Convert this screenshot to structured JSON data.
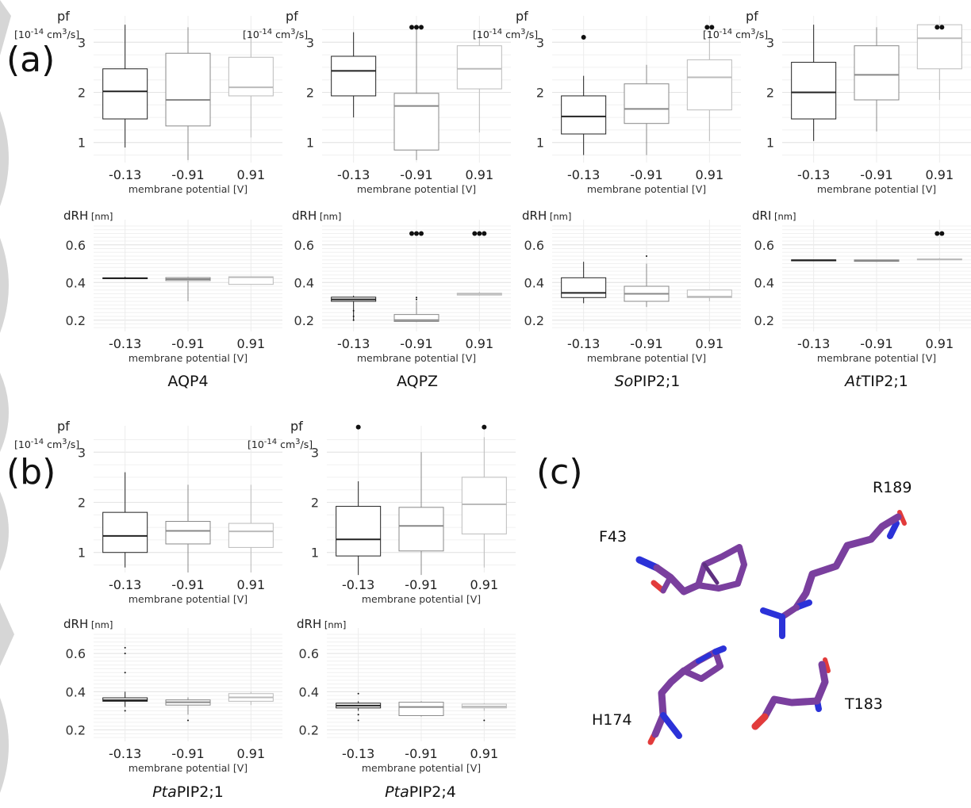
{
  "panel_labels": {
    "a": "(a)",
    "b": "(b)",
    "c": "(c)"
  },
  "proteins": [
    {
      "prefix": "",
      "name": "AQP4"
    },
    {
      "prefix": "",
      "name": "AQPZ"
    },
    {
      "prefix": "So",
      "name": "PIP2;1"
    },
    {
      "prefix": "At",
      "name": "TIP2;1"
    },
    {
      "prefix": "Pta",
      "name": "PIP2;1"
    },
    {
      "prefix": "Pta",
      "name": "PIP2;4"
    }
  ],
  "structure": {
    "residues": [
      "F43",
      "R189",
      "H174",
      "T183"
    ],
    "colors": {
      "carbon": "#7a3f9e",
      "nitrogen": "#2b32d8",
      "oxygen": "#e23b3b"
    }
  },
  "chart_data": [
    {
      "type": "box",
      "protein_index": 0,
      "ylabel": "pf",
      "yunit": "[10-14 cm3/s]",
      "ylabel_kind": "pf",
      "xlabel": "membrane potential [V]",
      "categories": [
        "-0.13",
        "-0.91",
        "0.91"
      ],
      "ylim": [
        0.6,
        3.4
      ],
      "yticks": [
        1,
        2,
        3
      ],
      "boxes": [
        {
          "whislo": 0.9,
          "q1": 1.47,
          "med": 2.02,
          "q3": 2.47,
          "whishi": 3.35,
          "outliers": []
        },
        {
          "whislo": 0.65,
          "q1": 1.33,
          "med": 1.85,
          "q3": 2.78,
          "whishi": 3.3,
          "outliers": []
        },
        {
          "whislo": 1.1,
          "q1": 1.93,
          "med": 2.1,
          "q3": 2.7,
          "whishi": 3.2,
          "outliers": []
        }
      ]
    },
    {
      "type": "box",
      "protein_index": 1,
      "ylabel": "pf",
      "yunit": "[10-14 cm3/s]",
      "ylabel_kind": "pf",
      "xlabel": "membrane potential [V]",
      "categories": [
        "-0.13",
        "-0.91",
        "0.91"
      ],
      "ylim": [
        0.6,
        3.4
      ],
      "yticks": [
        1,
        2,
        3
      ],
      "boxes": [
        {
          "whislo": 1.5,
          "q1": 1.93,
          "med": 2.43,
          "q3": 2.72,
          "whishi": 3.2,
          "outliers": []
        },
        {
          "whislo": 0.65,
          "q1": 0.85,
          "med": 1.73,
          "q3": 1.98,
          "whishi": 3.3,
          "outliers": [
            3.3,
            3.3,
            3.3
          ]
        },
        {
          "whislo": 1.2,
          "q1": 2.07,
          "med": 2.47,
          "q3": 2.93,
          "whishi": 3.2,
          "outliers": []
        }
      ]
    },
    {
      "type": "box",
      "protein_index": 2,
      "ylabel": "pf",
      "yunit": "[10-14 cm3/s]",
      "ylabel_kind": "pf",
      "xlabel": "membrane potential [V]",
      "categories": [
        "-0.13",
        "-0.91",
        "0.91"
      ],
      "ylim": [
        0.6,
        3.4
      ],
      "yticks": [
        1,
        2,
        3
      ],
      "boxes": [
        {
          "whislo": 0.75,
          "q1": 1.17,
          "med": 1.52,
          "q3": 1.93,
          "whishi": 2.33,
          "outliers": [
            3.1
          ]
        },
        {
          "whislo": 0.75,
          "q1": 1.38,
          "med": 1.67,
          "q3": 2.17,
          "whishi": 2.55,
          "outliers": []
        },
        {
          "whislo": 1.03,
          "q1": 1.65,
          "med": 2.3,
          "q3": 2.65,
          "whishi": 3.2,
          "outliers": [
            3.3,
            3.3
          ]
        }
      ]
    },
    {
      "type": "box",
      "protein_index": 3,
      "ylabel": "pf",
      "yunit": "[10-14 cm3/s]",
      "ylabel_kind": "pf",
      "xlabel": "membrane potential [V]",
      "categories": [
        "-0.13",
        "-0.91",
        "0.91"
      ],
      "ylim": [
        0.6,
        3.4
      ],
      "yticks": [
        1,
        2,
        3
      ],
      "boxes": [
        {
          "whislo": 1.03,
          "q1": 1.47,
          "med": 2.0,
          "q3": 2.6,
          "whishi": 3.35,
          "outliers": []
        },
        {
          "whislo": 1.22,
          "q1": 1.85,
          "med": 2.35,
          "q3": 2.93,
          "whishi": 3.3,
          "outliers": []
        },
        {
          "whislo": 1.85,
          "q1": 2.47,
          "med": 3.08,
          "q3": 3.35,
          "whishi": 3.35,
          "outliers": [
            3.3,
            3.3
          ]
        }
      ]
    },
    {
      "type": "box",
      "protein_index": 0,
      "ylabel": "dRH",
      "yunit": "[nm]",
      "ylabel_kind": "d",
      "xlabel": "membrane potential [V]",
      "categories": [
        "-0.13",
        "-0.91",
        "0.91"
      ],
      "ylim": [
        0.14,
        0.7
      ],
      "yticks": [
        0.2,
        0.4,
        0.6
      ],
      "boxes": [
        {
          "whislo": 0.42,
          "q1": 0.42,
          "med": 0.422,
          "q3": 0.425,
          "whishi": 0.43,
          "outliers": []
        },
        {
          "whislo": 0.3,
          "q1": 0.41,
          "med": 0.418,
          "q3": 0.426,
          "whishi": 0.43,
          "outliers": []
        },
        {
          "whislo": 0.39,
          "q1": 0.39,
          "med": 0.428,
          "q3": 0.43,
          "whishi": 0.43,
          "outliers": []
        }
      ]
    },
    {
      "type": "box",
      "protein_index": 1,
      "ylabel": "dRH",
      "yunit": "[nm]",
      "ylabel_kind": "d",
      "xlabel": "membrane potential [V]",
      "categories": [
        "-0.13",
        "-0.91",
        "0.91"
      ],
      "ylim": [
        0.14,
        0.7
      ],
      "yticks": [
        0.2,
        0.4,
        0.6
      ],
      "boxes": [
        {
          "whislo": 0.2,
          "q1": 0.3,
          "med": 0.31,
          "q3": 0.322,
          "whishi": 0.33,
          "outliers": [
            0.2,
            0.22,
            0.25
          ]
        },
        {
          "whislo": 0.19,
          "q1": 0.193,
          "med": 0.2,
          "q3": 0.23,
          "whishi": 0.3,
          "outliers": [
            0.31,
            0.32,
            0.66,
            0.66,
            0.66
          ]
        },
        {
          "whislo": 0.33,
          "q1": 0.333,
          "med": 0.34,
          "q3": 0.343,
          "whishi": 0.35,
          "outliers": [
            0.66,
            0.66,
            0.66
          ]
        }
      ]
    },
    {
      "type": "box",
      "protein_index": 2,
      "ylabel": "dRH",
      "yunit": "[nm]",
      "ylabel_kind": "d",
      "xlabel": "membrane potential [V]",
      "categories": [
        "-0.13",
        "-0.91",
        "0.91"
      ],
      "ylim": [
        0.14,
        0.7
      ],
      "yticks": [
        0.2,
        0.4,
        0.6
      ],
      "boxes": [
        {
          "whislo": 0.29,
          "q1": 0.32,
          "med": 0.345,
          "q3": 0.425,
          "whishi": 0.51,
          "outliers": []
        },
        {
          "whislo": 0.27,
          "q1": 0.3,
          "med": 0.34,
          "q3": 0.38,
          "whishi": 0.5,
          "outliers": [
            0.54
          ]
        },
        {
          "whislo": 0.3,
          "q1": 0.32,
          "med": 0.325,
          "q3": 0.36,
          "whishi": 0.36,
          "outliers": []
        }
      ]
    },
    {
      "type": "box",
      "protein_index": 3,
      "ylabel": "dRI",
      "yunit": "[nm]",
      "ylabel_kind": "d",
      "xlabel": "membrane potential [V]",
      "categories": [
        "-0.13",
        "-0.91",
        "0.91"
      ],
      "ylim": [
        0.14,
        0.7
      ],
      "yticks": [
        0.2,
        0.4,
        0.6
      ],
      "boxes": [
        {
          "whislo": 0.515,
          "q1": 0.515,
          "med": 0.518,
          "q3": 0.52,
          "whishi": 0.52,
          "outliers": []
        },
        {
          "whislo": 0.51,
          "q1": 0.512,
          "med": 0.516,
          "q3": 0.52,
          "whishi": 0.52,
          "outliers": []
        },
        {
          "whislo": 0.52,
          "q1": 0.52,
          "med": 0.523,
          "q3": 0.525,
          "whishi": 0.53,
          "outliers": [
            0.66,
            0.66
          ]
        }
      ]
    },
    {
      "type": "box",
      "protein_index": 4,
      "ylabel": "pf",
      "yunit": "[10-14 cm3/s]",
      "ylabel_kind": "pf",
      "xlabel": "membrane potential [V]",
      "categories": [
        "-0.13",
        "-0.91",
        "0.91"
      ],
      "ylim": [
        0.6,
        3.4
      ],
      "yticks": [
        1,
        2,
        3
      ],
      "boxes": [
        {
          "whislo": 0.7,
          "q1": 1.0,
          "med": 1.33,
          "q3": 1.8,
          "whishi": 2.6,
          "outliers": []
        },
        {
          "whislo": 0.6,
          "q1": 1.17,
          "med": 1.43,
          "q3": 1.62,
          "whishi": 2.35,
          "outliers": []
        },
        {
          "whislo": 0.6,
          "q1": 1.1,
          "med": 1.42,
          "q3": 1.58,
          "whishi": 2.35,
          "outliers": []
        }
      ]
    },
    {
      "type": "box",
      "protein_index": 5,
      "ylabel": "pf",
      "yunit": "[10-14 cm3/s]",
      "ylabel_kind": "pf",
      "xlabel": "membrane potential [V]",
      "categories": [
        "-0.13",
        "-0.91",
        "0.91"
      ],
      "ylim": [
        0.6,
        3.4
      ],
      "yticks": [
        1,
        2,
        3
      ],
      "boxes": [
        {
          "whislo": 0.55,
          "q1": 0.93,
          "med": 1.26,
          "q3": 1.92,
          "whishi": 2.42,
          "outliers": [
            3.5
          ]
        },
        {
          "whislo": 0.55,
          "q1": 1.03,
          "med": 1.53,
          "q3": 1.9,
          "whishi": 3.0,
          "outliers": []
        },
        {
          "whislo": 0.7,
          "q1": 1.37,
          "med": 1.96,
          "q3": 2.5,
          "whishi": 3.3,
          "outliers": [
            3.5
          ]
        }
      ]
    },
    {
      "type": "box",
      "protein_index": 4,
      "ylabel": "dRH",
      "yunit": "[nm]",
      "ylabel_kind": "d",
      "xlabel": "membrane potential [V]",
      "categories": [
        "-0.13",
        "-0.91",
        "0.91"
      ],
      "ylim": [
        0.14,
        0.7
      ],
      "yticks": [
        0.2,
        0.4,
        0.6
      ],
      "boxes": [
        {
          "whislo": 0.32,
          "q1": 0.35,
          "med": 0.355,
          "q3": 0.368,
          "whishi": 0.4,
          "outliers": [
            0.3,
            0.5,
            0.6,
            0.63
          ]
        },
        {
          "whislo": 0.28,
          "q1": 0.33,
          "med": 0.345,
          "q3": 0.357,
          "whishi": 0.37,
          "outliers": [
            0.25
          ]
        },
        {
          "whislo": 0.33,
          "q1": 0.35,
          "med": 0.37,
          "q3": 0.39,
          "whishi": 0.4,
          "outliers": []
        }
      ]
    },
    {
      "type": "box",
      "protein_index": 5,
      "ylabel": "dRH",
      "yunit": "[nm]",
      "ylabel_kind": "d",
      "xlabel": "membrane potential [V]",
      "categories": [
        "-0.13",
        "-0.91",
        "0.91"
      ],
      "ylim": [
        0.14,
        0.7
      ],
      "yticks": [
        0.2,
        0.4,
        0.6
      ],
      "boxes": [
        {
          "whislo": 0.3,
          "q1": 0.315,
          "med": 0.327,
          "q3": 0.34,
          "whishi": 0.35,
          "outliers": [
            0.25,
            0.28,
            0.39
          ]
        },
        {
          "whislo": 0.27,
          "q1": 0.275,
          "med": 0.32,
          "q3": 0.345,
          "whishi": 0.35,
          "outliers": []
        },
        {
          "whislo": 0.3,
          "q1": 0.315,
          "med": 0.322,
          "q3": 0.335,
          "whishi": 0.34,
          "outliers": [
            0.25
          ]
        }
      ]
    }
  ]
}
